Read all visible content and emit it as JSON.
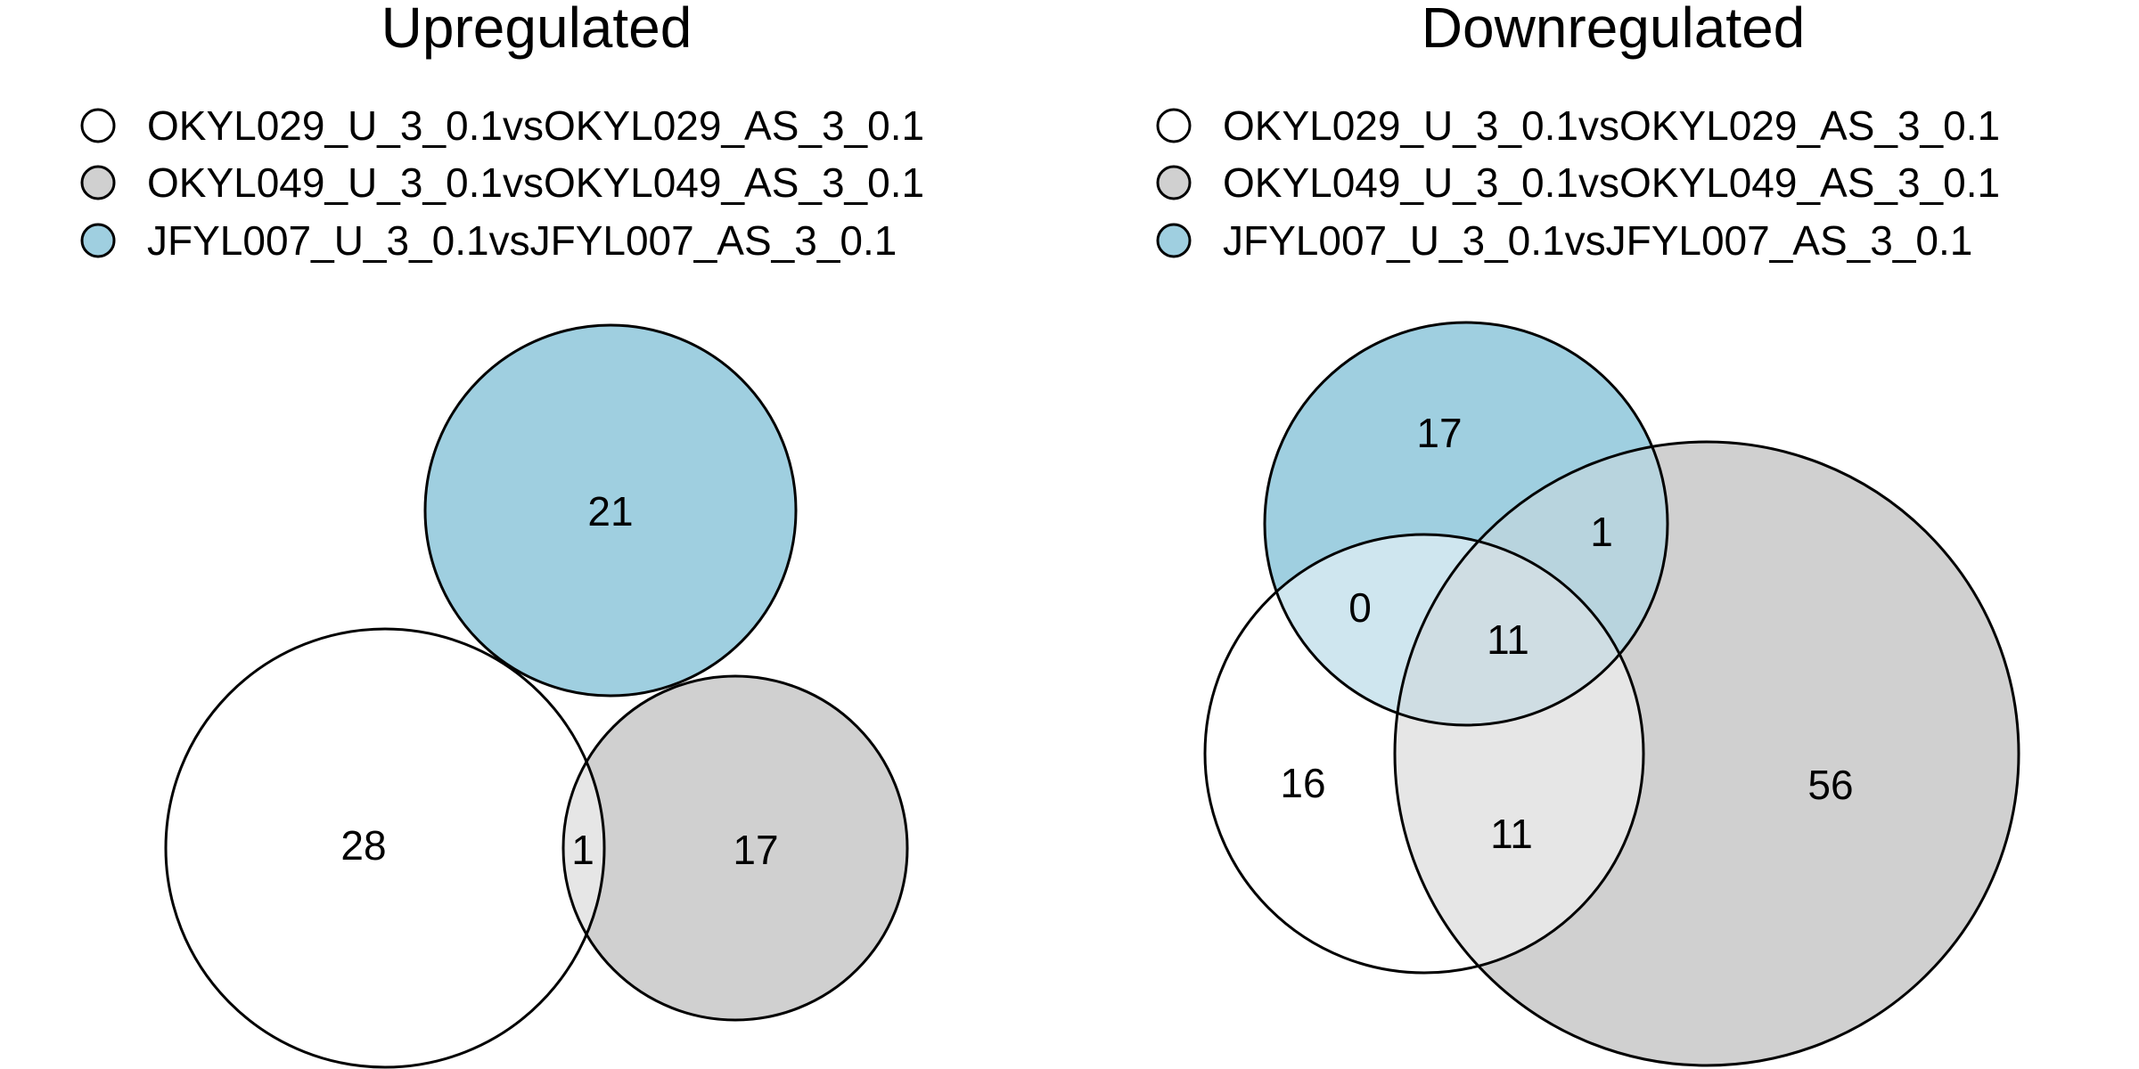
{
  "colors": {
    "set_a": "#ffffff",
    "set_b": "#d0d0d0",
    "set_c": "#9fcfe0",
    "overlap_ab": "#e6e6e6",
    "overlap_ac": "#cfe6ef",
    "overlap_bc": "#b8d4de",
    "overlap_abc": "#cfdde3",
    "stroke": "#000000"
  },
  "panels": [
    {
      "title": "Upregulated",
      "legend": [
        {
          "label": "OKYL029_U_3_0.1vsOKYL029_AS_3_0.1",
          "color": "#ffffff"
        },
        {
          "label": "OKYL049_U_3_0.1vsOKYL049_AS_3_0.1",
          "color": "#d0d0d0"
        },
        {
          "label": "JFYL007_U_3_0.1vsJFYL007_AS_3_0.1",
          "color": "#9fcfe0"
        }
      ],
      "regions": {
        "a_only": "28",
        "ab": "1",
        "b_only": "17",
        "c_only": "21"
      }
    },
    {
      "title": "Downregulated",
      "legend": [
        {
          "label": "OKYL029_U_3_0.1vsOKYL029_AS_3_0.1",
          "color": "#ffffff"
        },
        {
          "label": "OKYL049_U_3_0.1vsOKYL049_AS_3_0.1",
          "color": "#d0d0d0"
        },
        {
          "label": "JFYL007_U_3_0.1vsJFYL007_AS_3_0.1",
          "color": "#9fcfe0"
        }
      ],
      "regions": {
        "c_only": "17",
        "bc": "1",
        "ac": "0",
        "abc": "11",
        "a_only": "16",
        "ab": "11",
        "b_only": "56"
      }
    }
  ]
}
